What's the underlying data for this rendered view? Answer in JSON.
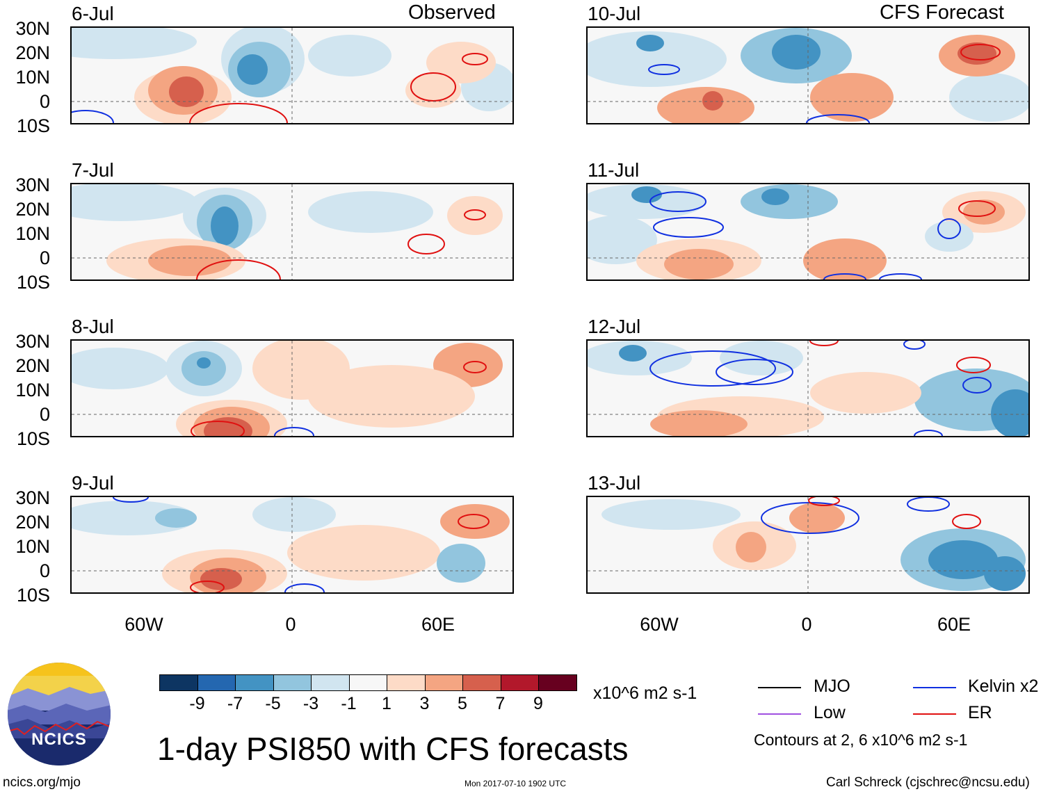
{
  "titles": {
    "left": "Observed",
    "right": "CFS Forecast"
  },
  "lat_labels": [
    "30N",
    "20N",
    "10N",
    "0",
    "10S"
  ],
  "lon_labels": [
    "60W",
    "0",
    "60E"
  ],
  "panels_left": [
    {
      "date": "6-Jul"
    },
    {
      "date": "7-Jul"
    },
    {
      "date": "8-Jul"
    },
    {
      "date": "9-Jul"
    }
  ],
  "panels_right": [
    {
      "date": "10-Jul"
    },
    {
      "date": "11-Jul"
    },
    {
      "date": "12-Jul"
    },
    {
      "date": "13-Jul"
    }
  ],
  "colorbar": {
    "colors": [
      "#0d3562",
      "#2467b0",
      "#4393c3",
      "#92c5de",
      "#d1e5f0",
      "#f7f7f7",
      "#fddbc7",
      "#f4a582",
      "#d6604d",
      "#b2182b",
      "#67001f"
    ],
    "ticks": [
      "-9",
      "-7",
      "-5",
      "-3",
      "-1",
      "1",
      "3",
      "5",
      "7",
      "9"
    ],
    "units": "x10^6 m2 s-1"
  },
  "main_title": "1-day PSI850 with CFS forecasts",
  "legend": {
    "mjo": "MJO",
    "low": "Low",
    "kelvin": "Kelvin x2",
    "er": "ER",
    "contours": "Contours at 2, 6 x10^6 m2 s-1",
    "line_colors": {
      "mjo": "#000000",
      "low": "#a050e0",
      "kelvin": "#1030e0",
      "er": "#e01010"
    }
  },
  "logo_text": "NCICS",
  "footer": {
    "url": "ncics.org/mjo",
    "timestamp": "Mon 2017-07-10 1902 UTC",
    "credit": "Carl Schreck (cjschrec@ncsu.edu)"
  }
}
